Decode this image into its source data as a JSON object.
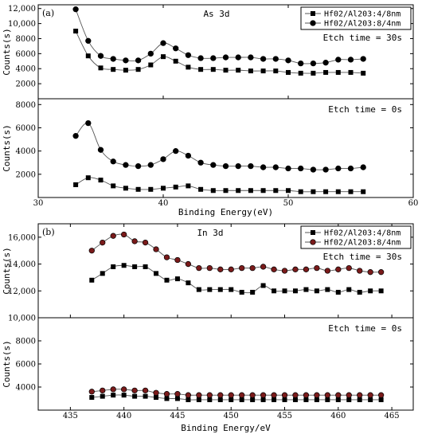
{
  "chart_data": [
    {
      "type": "line",
      "panel_label": "(a)",
      "element": "As 3d",
      "xlabel": "Binding Energy(eV)",
      "xlim": [
        30,
        60
      ],
      "xticks": [
        "30",
        "40",
        "50",
        "60"
      ],
      "legend_position": "top-right",
      "subplots": [
        {
          "annotation": "Etch time = 30s",
          "ylabel": "Counts(s)",
          "ylim": [
            0,
            12500
          ],
          "yticks": [
            "2000",
            "4000",
            "6000",
            "8000",
            "10,000",
            "12,000"
          ],
          "x": [
            33,
            34,
            35,
            36,
            37,
            38,
            39,
            40,
            41,
            42,
            43,
            44,
            45,
            46,
            47,
            48,
            49,
            50,
            51,
            52,
            53,
            54,
            55,
            56
          ],
          "series": [
            {
              "name": "Hf02/Al203:4/8nm",
              "marker": "square",
              "values": [
                9000,
                5700,
                4100,
                3900,
                3800,
                3900,
                4500,
                5600,
                5000,
                4200,
                3900,
                3900,
                3800,
                3800,
                3700,
                3700,
                3700,
                3500,
                3400,
                3400,
                3500,
                3500,
                3500,
                3400
              ]
            },
            {
              "name": "Hf02/Al203:8/4nm",
              "marker": "circle",
              "values": [
                11900,
                7700,
                5700,
                5300,
                5100,
                5100,
                6000,
                7400,
                6700,
                5800,
                5400,
                5400,
                5500,
                5500,
                5500,
                5300,
                5300,
                5100,
                4700,
                4700,
                4800,
                5200,
                5200,
                5300
              ]
            }
          ]
        },
        {
          "annotation": "Etch time = 0s",
          "ylabel": "Counts(s)",
          "ylim": [
            0,
            8500
          ],
          "yticks": [
            "2000",
            "4000",
            "6000",
            "8000"
          ],
          "x": [
            33,
            34,
            35,
            36,
            37,
            38,
            39,
            40,
            41,
            42,
            43,
            44,
            45,
            46,
            47,
            48,
            49,
            50,
            51,
            52,
            53,
            54,
            55,
            56
          ],
          "series": [
            {
              "name": "Hf02/Al203:4/8nm",
              "marker": "square",
              "values": [
                1100,
                1700,
                1500,
                1000,
                800,
                700,
                700,
                800,
                900,
                1000,
                700,
                600,
                600,
                600,
                600,
                600,
                600,
                600,
                500,
                500,
                500,
                500,
                500,
                500
              ]
            },
            {
              "name": "Hf02/Al203:8/4nm",
              "marker": "circle",
              "values": [
                5300,
                6400,
                4100,
                3100,
                2800,
                2700,
                2800,
                3300,
                4000,
                3600,
                3000,
                2800,
                2700,
                2700,
                2700,
                2600,
                2600,
                2500,
                2500,
                2400,
                2400,
                2500,
                2500,
                2600
              ]
            }
          ]
        }
      ]
    },
    {
      "type": "line",
      "panel_label": "(b)",
      "element": "In 3d",
      "xlabel": "Binding Energy/eV",
      "xlim": [
        432,
        467
      ],
      "xticks": [
        "435",
        "440",
        "445",
        "450",
        "455",
        "460",
        "465"
      ],
      "legend_position": "top-right",
      "subplots": [
        {
          "annotation": "Etch time = 30s",
          "ylabel": "Counts(s)",
          "ylim": [
            10000,
            17000
          ],
          "yticks": [
            "10,000",
            "12,000",
            "14,000",
            "16,000"
          ],
          "x": [
            437,
            438,
            439,
            440,
            441,
            442,
            443,
            444,
            445,
            446,
            447,
            448,
            449,
            450,
            451,
            452,
            453,
            454,
            455,
            456,
            457,
            458,
            459,
            460,
            461,
            462,
            463,
            464
          ],
          "series": [
            {
              "name": "Hf02/Al203:4/8nm",
              "marker": "square",
              "values": [
                12800,
                13300,
                13800,
                13900,
                13800,
                13800,
                13300,
                12800,
                12900,
                12600,
                12100,
                12100,
                12100,
                12100,
                11900,
                11900,
                12400,
                12000,
                12000,
                12000,
                12100,
                12000,
                12100,
                11900,
                12100,
                11900,
                12000,
                12000
              ]
            },
            {
              "name": "Hf02/Al203:8/4nm",
              "marker": "circle",
              "values": [
                15000,
                15600,
                16100,
                16200,
                15700,
                15600,
                15100,
                14500,
                14300,
                14000,
                13700,
                13700,
                13600,
                13600,
                13700,
                13700,
                13800,
                13600,
                13500,
                13600,
                13600,
                13700,
                13500,
                13600,
                13700,
                13500,
                13400,
                13400
              ]
            }
          ]
        },
        {
          "annotation": "Etch time = 0s",
          "ylabel": "Counts(s)",
          "ylim": [
            2000,
            10000
          ],
          "yticks": [
            "4000",
            "6000",
            "8000"
          ],
          "x": [
            437,
            438,
            439,
            440,
            441,
            442,
            443,
            444,
            445,
            446,
            447,
            448,
            449,
            450,
            451,
            452,
            453,
            454,
            455,
            456,
            457,
            458,
            459,
            460,
            461,
            462,
            463,
            464
          ],
          "series": [
            {
              "name": "Hf02/Al203:4/8nm",
              "marker": "square",
              "values": [
                3100,
                3200,
                3300,
                3300,
                3200,
                3200,
                3100,
                3000,
                3000,
                2900,
                2900,
                2900,
                2900,
                2900,
                2900,
                2900,
                2900,
                2900,
                2900,
                2900,
                2900,
                2900,
                2900,
                2900,
                2900,
                2900,
                2900,
                2900
              ]
            },
            {
              "name": "Hf02/Al203:8/4nm",
              "marker": "circle",
              "values": [
                3600,
                3700,
                3800,
                3800,
                3700,
                3700,
                3500,
                3400,
                3400,
                3300,
                3300,
                3300,
                3300,
                3300,
                3300,
                3300,
                3300,
                3300,
                3300,
                3300,
                3300,
                3300,
                3300,
                3300,
                3300,
                3300,
                3300,
                3300
              ]
            }
          ]
        }
      ]
    }
  ],
  "colors": {
    "axis": "#000000",
    "line": "#555555",
    "square_fill": "#000000",
    "circle_fill_a": "#000000",
    "circle_fill_b": "#7a1a1a"
  }
}
